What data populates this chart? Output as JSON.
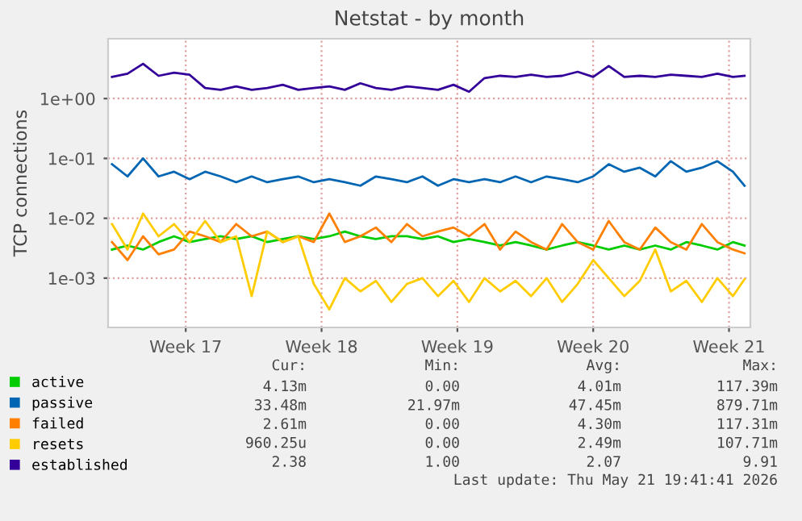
{
  "chart_data": {
    "type": "line",
    "title": "Netstat - by month",
    "ylabel": "TCP connections",
    "x": [
      "2026-04-16T04:48",
      "2026-04-17T00:00",
      "2026-04-17T19:12",
      "2026-04-18T14:24",
      "2026-04-19T09:36",
      "2026-04-20T04:48",
      "2026-04-21T00:00",
      "2026-04-21T19:12",
      "2026-04-22T14:24",
      "2026-04-23T09:36",
      "2026-04-24T04:48",
      "2026-04-25T00:00",
      "2026-04-25T19:12",
      "2026-04-26T14:24",
      "2026-04-27T09:36",
      "2026-04-28T04:48",
      "2026-04-29T00:00",
      "2026-04-29T19:12",
      "2026-04-30T14:24",
      "2026-05-01T09:36",
      "2026-05-02T04:48",
      "2026-05-03T00:00",
      "2026-05-03T19:12",
      "2026-05-04T14:24",
      "2026-05-05T09:36",
      "2026-05-06T04:48",
      "2026-05-07T00:00",
      "2026-05-07T19:12",
      "2026-05-08T14:24",
      "2026-05-09T09:36",
      "2026-05-10T04:48",
      "2026-05-11T00:00",
      "2026-05-11T19:12",
      "2026-05-12T14:24",
      "2026-05-13T09:36",
      "2026-05-14T04:48",
      "2026-05-15T00:00",
      "2026-05-15T19:12",
      "2026-05-16T14:24",
      "2026-05-17T09:36",
      "2026-05-18T04:48",
      "2026-05-18T19:12"
    ],
    "series": [
      {
        "name": "active",
        "color": "#00cc00",
        "values": [
          0.003,
          0.0035,
          0.003,
          0.004,
          0.005,
          0.004,
          0.0045,
          0.005,
          0.0045,
          0.005,
          0.004,
          0.0045,
          0.005,
          0.0045,
          0.005,
          0.006,
          0.005,
          0.0045,
          0.005,
          0.005,
          0.0045,
          0.005,
          0.004,
          0.0045,
          0.004,
          0.0035,
          0.004,
          0.0035,
          0.003,
          0.0035,
          0.004,
          0.0035,
          0.003,
          0.0035,
          0.003,
          0.0035,
          0.003,
          0.004,
          0.0035,
          0.003,
          0.004,
          0.0035
        ]
      },
      {
        "name": "passive",
        "color": "#0066b3",
        "values": [
          0.08,
          0.05,
          0.1,
          0.05,
          0.06,
          0.045,
          0.06,
          0.05,
          0.04,
          0.05,
          0.04,
          0.045,
          0.05,
          0.04,
          0.045,
          0.04,
          0.035,
          0.05,
          0.045,
          0.04,
          0.05,
          0.035,
          0.045,
          0.04,
          0.045,
          0.04,
          0.05,
          0.04,
          0.05,
          0.045,
          0.04,
          0.05,
          0.08,
          0.06,
          0.07,
          0.05,
          0.09,
          0.06,
          0.07,
          0.09,
          0.06,
          0.035
        ]
      },
      {
        "name": "failed",
        "color": "#ff8000",
        "values": [
          0.004,
          0.002,
          0.005,
          0.0025,
          0.003,
          0.006,
          0.005,
          0.004,
          0.008,
          0.005,
          0.006,
          0.004,
          0.005,
          0.004,
          0.012,
          0.004,
          0.005,
          0.007,
          0.004,
          0.008,
          0.005,
          0.006,
          0.007,
          0.005,
          0.008,
          0.003,
          0.006,
          0.004,
          0.003,
          0.008,
          0.004,
          0.003,
          0.009,
          0.004,
          0.003,
          0.007,
          0.004,
          0.003,
          0.008,
          0.004,
          0.003,
          0.0026
        ]
      },
      {
        "name": "resets",
        "color": "#ffcc00",
        "values": [
          0.008,
          0.003,
          0.012,
          0.005,
          0.008,
          0.004,
          0.009,
          0.004,
          0.005,
          0.0005,
          0.006,
          0.004,
          0.005,
          0.0008,
          0.0003,
          0.001,
          0.0006,
          0.0009,
          0.0004,
          0.0008,
          0.001,
          0.0005,
          0.0009,
          0.0004,
          0.001,
          0.0006,
          0.0009,
          0.0005,
          0.001,
          0.0004,
          0.0008,
          0.002,
          0.001,
          0.0005,
          0.0009,
          0.003,
          0.0006,
          0.0009,
          0.0004,
          0.001,
          0.0005,
          0.00096
        ]
      },
      {
        "name": "established",
        "color": "#330099",
        "values": [
          2.3,
          2.6,
          3.8,
          2.4,
          2.7,
          2.5,
          1.5,
          1.4,
          1.6,
          1.4,
          1.5,
          1.7,
          1.4,
          1.5,
          1.6,
          1.4,
          1.8,
          1.5,
          1.4,
          1.6,
          1.5,
          1.4,
          1.7,
          1.3,
          2.2,
          2.4,
          2.3,
          2.5,
          2.3,
          2.4,
          2.8,
          2.3,
          3.5,
          2.3,
          2.4,
          2.3,
          2.5,
          2.4,
          2.3,
          2.6,
          2.3,
          2.4
        ]
      }
    ],
    "log": "y",
    "xlim": [
      "2026-04-16",
      "2026-05-19T02:24"
    ],
    "ylim": [
      0.00015,
      10
    ],
    "xticks": [
      {
        "value": "2026-04-20",
        "label": "Week 17"
      },
      {
        "value": "2026-04-27",
        "label": "Week 18"
      },
      {
        "value": "2026-05-04",
        "label": "Week 19"
      },
      {
        "value": "2026-05-11",
        "label": "Week 20"
      },
      {
        "value": "2026-05-18",
        "label": "Week 21"
      }
    ],
    "yticks": [
      {
        "value": 0.001,
        "label": "1e-03"
      },
      {
        "value": 0.01,
        "label": "1e-02"
      },
      {
        "value": 0.1,
        "label": "1e-01"
      },
      {
        "value": 1,
        "label": "1e+00"
      }
    ],
    "grid": true,
    "legend": "bottom left",
    "marker": "none",
    "line_style": "solid",
    "annotations": [
      "Cur:",
      "Min:",
      "Avg:",
      "Max:",
      "4.13m",
      "0.00",
      "4.01m",
      "117.39m",
      "33.48m",
      "21.97m",
      "47.45m",
      "879.71m",
      "2.61m",
      "0.00",
      "4.30m",
      "117.31m",
      "960.25u",
      "0.00",
      "2.49m",
      "107.71m",
      "2.38",
      "1.00",
      "2.07",
      "9.91",
      "Last update: Thu May 21 19:41:41 2026"
    ]
  }
}
